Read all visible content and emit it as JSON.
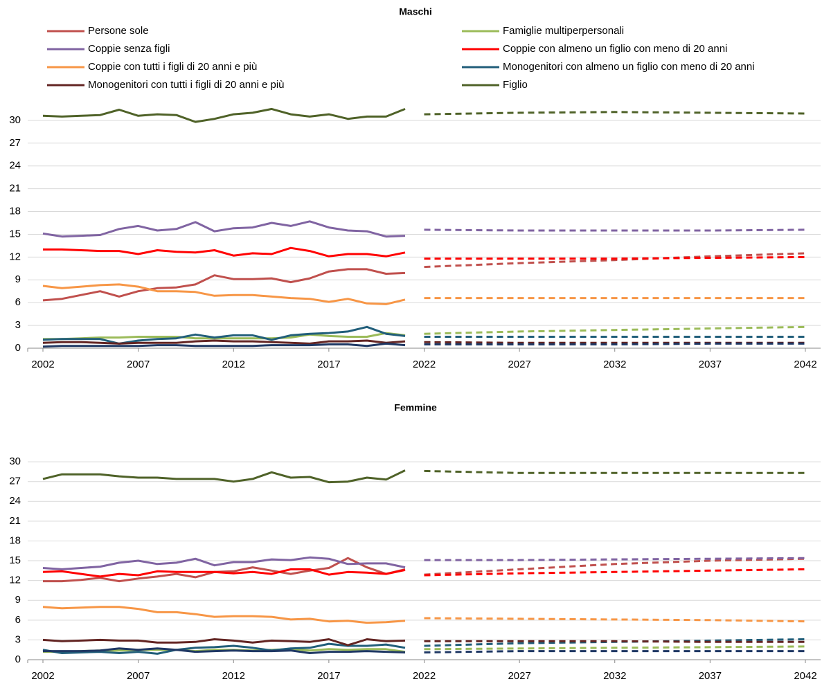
{
  "chart_data": [
    {
      "type": "line",
      "title": "Maschi",
      "x": [
        2002,
        2003,
        2004,
        2005,
        2006,
        2007,
        2008,
        2009,
        2010,
        2011,
        2012,
        2013,
        2014,
        2015,
        2016,
        2017,
        2018,
        2019,
        2020,
        2021
      ],
      "projection_x": [
        2022,
        2027,
        2032,
        2037,
        2042
      ],
      "xlim": [
        2002,
        2042
      ],
      "xticks": [
        2002,
        2007,
        2012,
        2017,
        2022,
        2027,
        2032,
        2037,
        2042
      ],
      "ylim": [
        0,
        32
      ],
      "yticks": [
        0,
        3,
        6,
        9,
        12,
        15,
        18,
        21,
        24,
        27,
        30
      ],
      "grid": true,
      "legend": "top",
      "series": [
        {
          "name": "Persone sole",
          "color": "#c0504d",
          "values": [
            6.3,
            6.5,
            7.0,
            7.5,
            6.8,
            7.5,
            7.9,
            8.0,
            8.4,
            9.6,
            9.1,
            9.1,
            9.2,
            8.7,
            9.2,
            10.1,
            10.4,
            10.4,
            9.8,
            9.9
          ],
          "projection": [
            10.7,
            11.2,
            11.6,
            12.1,
            12.5
          ]
        },
        {
          "name": "Famiglie multiperpersonali",
          "color": "#9bbb59",
          "values": [
            1.2,
            1.2,
            1.3,
            1.4,
            1.4,
            1.5,
            1.5,
            1.5,
            1.3,
            1.3,
            1.3,
            1.3,
            1.3,
            1.4,
            1.8,
            1.6,
            1.5,
            1.5,
            2.0,
            1.7
          ],
          "projection": [
            1.9,
            2.2,
            2.4,
            2.6,
            2.8
          ]
        },
        {
          "name": "Coppie senza figli",
          "color": "#8064a2",
          "values": [
            15.1,
            14.7,
            14.8,
            14.9,
            15.7,
            16.1,
            15.5,
            15.7,
            16.6,
            15.4,
            15.8,
            15.9,
            16.5,
            16.1,
            16.7,
            15.9,
            15.5,
            15.4,
            14.7,
            14.8
          ],
          "projection": [
            15.6,
            15.5,
            15.5,
            15.5,
            15.6
          ]
        },
        {
          "name": "Coppie con almeno un figlio  con meno di 20 anni",
          "color": "#ff0000",
          "values": [
            13.0,
            13.0,
            12.9,
            12.8,
            12.8,
            12.4,
            12.9,
            12.7,
            12.6,
            12.9,
            12.2,
            12.5,
            12.4,
            13.2,
            12.8,
            12.1,
            12.4,
            12.4,
            12.1,
            12.6
          ],
          "projection": [
            11.8,
            11.8,
            11.8,
            11.9,
            12.0
          ]
        },
        {
          "name": "Coppie con tutti i figli di 20 anni e più",
          "color": "#f79646",
          "values": [
            8.2,
            7.9,
            8.1,
            8.3,
            8.4,
            8.1,
            7.5,
            7.5,
            7.4,
            6.9,
            7.0,
            7.0,
            6.8,
            6.6,
            6.5,
            6.1,
            6.5,
            5.9,
            5.8,
            6.4
          ],
          "projection": [
            6.6,
            6.6,
            6.6,
            6.6,
            6.6
          ]
        },
        {
          "name": "Monogenitori con almeno un figlio con meno di 20 anni",
          "color": "#215e7a",
          "values": [
            1.1,
            1.2,
            1.2,
            1.2,
            0.6,
            1.0,
            1.2,
            1.3,
            1.8,
            1.4,
            1.7,
            1.7,
            1.1,
            1.7,
            1.9,
            2.0,
            2.2,
            2.8,
            1.9,
            1.6
          ],
          "projection": [
            1.5,
            1.5,
            1.5,
            1.5,
            1.5
          ]
        },
        {
          "name": "Monogenitori con tutti i figli di 20 anni e più",
          "color": "#632523",
          "values": [
            0.7,
            0.8,
            0.8,
            0.7,
            0.6,
            0.7,
            0.7,
            0.7,
            0.9,
            1.0,
            0.9,
            0.9,
            0.8,
            0.7,
            0.6,
            0.9,
            0.9,
            1.0,
            0.7,
            0.9
          ],
          "projection": [
            0.8,
            0.7,
            0.7,
            0.7,
            0.7
          ]
        },
        {
          "name": "Figlio",
          "color": "#4f6228",
          "values": [
            30.6,
            30.5,
            30.6,
            30.7,
            31.4,
            30.6,
            30.8,
            30.7,
            29.8,
            30.2,
            30.8,
            31.0,
            31.5,
            30.8,
            30.5,
            30.8,
            30.2,
            30.5,
            30.5,
            31.5
          ],
          "projection": [
            30.8,
            31.0,
            31.1,
            31.0,
            30.9
          ]
        },
        {
          "color": "#1f3864",
          "values": [
            0.2,
            0.3,
            0.3,
            0.3,
            0.3,
            0.3,
            0.4,
            0.4,
            0.3,
            0.3,
            0.3,
            0.3,
            0.4,
            0.4,
            0.4,
            0.5,
            0.5,
            0.3,
            0.6,
            0.4
          ],
          "projection": [
            0.5,
            0.5,
            0.5,
            0.6,
            0.6
          ]
        }
      ]
    },
    {
      "type": "line",
      "title": "Femmine",
      "x": [
        2002,
        2003,
        2004,
        2005,
        2006,
        2007,
        2008,
        2009,
        2010,
        2011,
        2012,
        2013,
        2014,
        2015,
        2016,
        2017,
        2018,
        2019,
        2020,
        2021
      ],
      "projection_x": [
        2022,
        2027,
        2032,
        2037,
        2042
      ],
      "xlim": [
        2002,
        2042
      ],
      "xticks": [
        2002,
        2007,
        2012,
        2017,
        2022,
        2027,
        2032,
        2037,
        2042
      ],
      "ylim": [
        0,
        30
      ],
      "yticks": [
        0,
        3,
        6,
        9,
        12,
        15,
        18,
        21,
        24,
        27,
        30
      ],
      "grid": true,
      "series": [
        {
          "color": "#c0504d",
          "values": [
            11.9,
            11.9,
            12.1,
            12.4,
            11.9,
            12.3,
            12.6,
            13.0,
            12.5,
            13.3,
            13.4,
            14.0,
            13.5,
            13.0,
            13.5,
            13.9,
            15.4,
            14.0,
            13.0,
            13.7
          ],
          "projection": [
            12.9,
            13.7,
            14.5,
            15.0,
            15.3
          ]
        },
        {
          "color": "#9bbb59",
          "values": [
            1.2,
            1.2,
            1.3,
            1.4,
            1.4,
            1.5,
            1.5,
            1.5,
            1.3,
            1.5,
            1.5,
            1.4,
            1.5,
            1.6,
            1.4,
            1.6,
            1.5,
            1.6,
            1.6,
            1.2
          ],
          "projection": [
            1.6,
            1.7,
            1.8,
            1.9,
            2.0
          ]
        },
        {
          "color": "#8064a2",
          "values": [
            13.9,
            13.7,
            13.9,
            14.1,
            14.7,
            15.0,
            14.5,
            14.7,
            15.3,
            14.3,
            14.8,
            14.8,
            15.2,
            15.1,
            15.5,
            15.3,
            14.5,
            14.6,
            14.6,
            14.0
          ],
          "projection": [
            15.1,
            15.1,
            15.2,
            15.3,
            15.4
          ]
        },
        {
          "color": "#ff0000",
          "values": [
            13.3,
            13.4,
            13.0,
            12.6,
            13.0,
            12.8,
            13.4,
            13.3,
            13.3,
            13.3,
            13.1,
            13.3,
            13.0,
            13.7,
            13.7,
            12.9,
            13.3,
            13.2,
            13.0,
            13.6
          ],
          "projection": [
            12.8,
            13.1,
            13.3,
            13.5,
            13.7
          ]
        },
        {
          "color": "#f79646",
          "values": [
            8.0,
            7.8,
            7.9,
            8.0,
            8.0,
            7.7,
            7.2,
            7.2,
            6.9,
            6.5,
            6.6,
            6.6,
            6.5,
            6.1,
            6.2,
            5.8,
            5.9,
            5.6,
            5.7,
            5.9
          ],
          "projection": [
            6.3,
            6.2,
            6.1,
            6.0,
            5.8
          ]
        },
        {
          "color": "#215e7a",
          "values": [
            1.5,
            1.0,
            1.1,
            1.2,
            1.0,
            1.2,
            0.9,
            1.5,
            1.8,
            1.9,
            2.1,
            1.8,
            1.4,
            1.7,
            1.8,
            2.4,
            2.1,
            2.1,
            2.3,
            1.8
          ],
          "projection": [
            2.1,
            2.5,
            2.7,
            2.9,
            3.1
          ]
        },
        {
          "color": "#632523",
          "values": [
            3.0,
            2.8,
            2.9,
            3.0,
            2.9,
            2.9,
            2.6,
            2.6,
            2.7,
            3.1,
            2.9,
            2.6,
            2.9,
            2.8,
            2.7,
            3.1,
            2.2,
            3.1,
            2.8,
            2.9
          ],
          "projection": [
            2.8,
            2.8,
            2.8,
            2.7,
            2.7
          ]
        },
        {
          "color": "#4f6228",
          "values": [
            27.4,
            28.1,
            28.1,
            28.1,
            27.8,
            27.6,
            27.6,
            27.4,
            27.4,
            27.4,
            27.0,
            27.4,
            28.4,
            27.6,
            27.7,
            26.9,
            27.0,
            27.6,
            27.3,
            28.7
          ],
          "projection": [
            28.6,
            28.3,
            28.3,
            28.3,
            28.3
          ]
        },
        {
          "color": "#1f3864",
          "values": [
            1.3,
            1.3,
            1.3,
            1.4,
            1.7,
            1.5,
            1.7,
            1.5,
            1.2,
            1.3,
            1.4,
            1.3,
            1.3,
            1.4,
            1.0,
            1.2,
            1.2,
            1.3,
            1.2,
            1.1
          ],
          "projection": [
            1.1,
            1.3,
            1.3,
            1.3,
            1.3
          ]
        }
      ]
    }
  ]
}
